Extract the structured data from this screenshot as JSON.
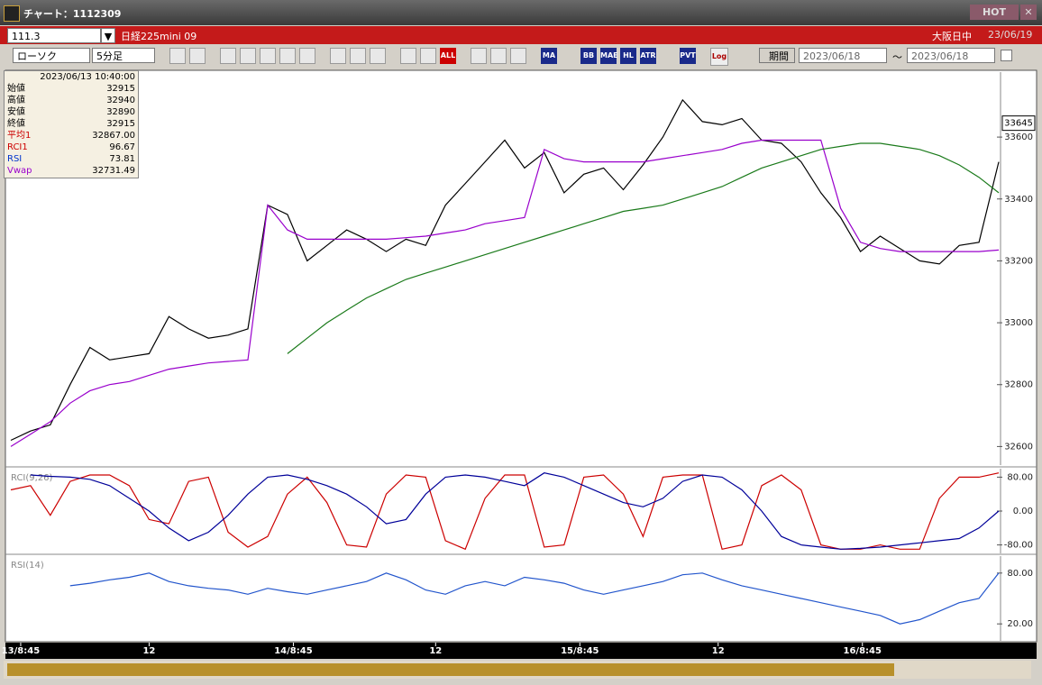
{
  "window": {
    "title": "チャート：1112309",
    "hot": "HOT"
  },
  "symbol_bar": {
    "code": "111.3",
    "name": "日経225mini 09",
    "market": "大阪日中",
    "date": "23/06/19"
  },
  "toolbar": {
    "chart_style": "ローソク",
    "interval": "5分足",
    "buttons": [
      "ALL",
      "MA",
      "BB",
      "MAE",
      "HL",
      "ATR",
      "PVT",
      "Log"
    ],
    "period": "期間",
    "from": "2023/06/18",
    "tilde": "～",
    "to": "2023/06/18"
  },
  "info_panel": {
    "datetime": "2023/06/13 10:40:00",
    "rows": [
      {
        "label": "始値",
        "value": "32915"
      },
      {
        "label": "高値",
        "value": "32940"
      },
      {
        "label": "安値",
        "value": "32890"
      },
      {
        "label": "終値",
        "value": "32915"
      },
      {
        "label": "平均1",
        "value": "32867.00"
      },
      {
        "label": "RCI1",
        "value": "96.67"
      },
      {
        "label": "RSI",
        "value": "73.81"
      },
      {
        "label": "Vwap",
        "value": "32731.49"
      }
    ]
  },
  "chart_data": [
    {
      "type": "line",
      "xlim": [
        0,
        50
      ],
      "ylim": [
        32540,
        33810
      ],
      "yticks": [
        32600,
        32800,
        33000,
        33200,
        33400,
        33600
      ],
      "last_value": 33645,
      "xticks": [
        {
          "value": 0.5,
          "label": "13/8:45"
        },
        {
          "value": 7,
          "label": "12"
        },
        {
          "value": 14.3,
          "label": "14/8:45"
        },
        {
          "value": 21.5,
          "label": "12"
        },
        {
          "value": 28.8,
          "label": "15/8:45"
        },
        {
          "value": 35.8,
          "label": "12"
        },
        {
          "value": 43.1,
          "label": "16/8:45"
        }
      ],
      "series": [
        {
          "color": "#000000",
          "values": [
            32620,
            32650,
            32670,
            32800,
            32920,
            32880,
            32890,
            32900,
            33020,
            32980,
            32950,
            32960,
            32980,
            33380,
            33350,
            33200,
            33250,
            33300,
            33270,
            33230,
            33270,
            33250,
            33380,
            33450,
            33520,
            33590,
            33500,
            33550,
            33420,
            33480,
            33500,
            33430,
            33510,
            33600,
            33720,
            33650,
            33640,
            33660,
            33590,
            33580,
            33520,
            33420,
            33340,
            33230,
            33280,
            33240,
            33200,
            33190,
            33250,
            33260,
            33520
          ]
        },
        {
          "color": "#9900cc",
          "values": [
            32600,
            32640,
            32680,
            32740,
            32780,
            32800,
            32810,
            32830,
            32850,
            32860,
            32870,
            32875,
            32880,
            33380,
            33300,
            33270,
            33270,
            33270,
            33270,
            33270,
            33275,
            33280,
            33290,
            33300,
            33320,
            33330,
            33340,
            33560,
            33530,
            33520,
            33520,
            33520,
            33520,
            33530,
            33540,
            33550,
            33560,
            33580,
            33590,
            33590,
            33590,
            33590,
            33370,
            33260,
            33240,
            33230,
            33230,
            33230,
            33230,
            33230,
            33235
          ]
        },
        {
          "color": "#1a7a1a",
          "values": [
            null,
            null,
            null,
            null,
            null,
            null,
            null,
            null,
            null,
            null,
            null,
            null,
            null,
            null,
            32900,
            32950,
            33000,
            33040,
            33080,
            33110,
            33140,
            33160,
            33180,
            33200,
            33220,
            33240,
            33260,
            33280,
            33300,
            33320,
            33340,
            33360,
            33370,
            33380,
            33400,
            33420,
            33440,
            33470,
            33500,
            33520,
            33540,
            33560,
            33570,
            33580,
            33580,
            33570,
            33560,
            33540,
            33510,
            33470,
            33420
          ]
        }
      ]
    },
    {
      "type": "line",
      "label": "RCI(9,26)",
      "xlim": [
        0,
        50
      ],
      "ylim": [
        -100,
        100
      ],
      "yticks": [
        {
          "value": 80,
          "label": "80.00"
        },
        {
          "value": 0,
          "label": "0.00"
        },
        {
          "value": -80,
          "label": "-80.00"
        }
      ],
      "series": [
        {
          "color": "#cc0000",
          "values": [
            50,
            60,
            -10,
            70,
            85,
            85,
            60,
            -20,
            -30,
            70,
            80,
            -50,
            -85,
            -60,
            40,
            80,
            20,
            -80,
            -85,
            40,
            85,
            80,
            -70,
            -90,
            30,
            85,
            85,
            -85,
            -80,
            80,
            85,
            40,
            -60,
            80,
            85,
            85,
            -90,
            -80,
            60,
            85,
            50,
            -80,
            -90,
            -90,
            -80,
            -90,
            -90,
            30,
            80,
            80,
            90
          ]
        },
        {
          "color": "#000099",
          "values": [
            null,
            85,
            82,
            80,
            75,
            60,
            30,
            0,
            -40,
            -70,
            -50,
            -10,
            40,
            80,
            85,
            75,
            60,
            40,
            10,
            -30,
            -20,
            40,
            80,
            85,
            80,
            70,
            60,
            90,
            80,
            60,
            40,
            20,
            10,
            30,
            70,
            85,
            80,
            50,
            0,
            -60,
            -80,
            -85,
            -90,
            -88,
            -85,
            -80,
            -75,
            -70,
            -65,
            -40,
            0
          ]
        }
      ]
    },
    {
      "type": "line",
      "label": "RSI(14)",
      "xlim": [
        0,
        50
      ],
      "ylim": [
        0,
        100
      ],
      "yticks": [
        {
          "value": 80,
          "label": "80.00"
        },
        {
          "value": 20,
          "label": "20.00"
        }
      ],
      "series": [
        {
          "color": "#2255cc",
          "values": [
            null,
            null,
            null,
            65,
            68,
            72,
            75,
            80,
            70,
            65,
            62,
            60,
            55,
            62,
            58,
            55,
            60,
            65,
            70,
            80,
            72,
            60,
            55,
            65,
            70,
            65,
            75,
            72,
            68,
            60,
            55,
            60,
            65,
            70,
            78,
            80,
            72,
            65,
            60,
            55,
            50,
            45,
            40,
            35,
            30,
            20,
            25,
            35,
            45,
            50,
            80
          ]
        }
      ]
    }
  ]
}
